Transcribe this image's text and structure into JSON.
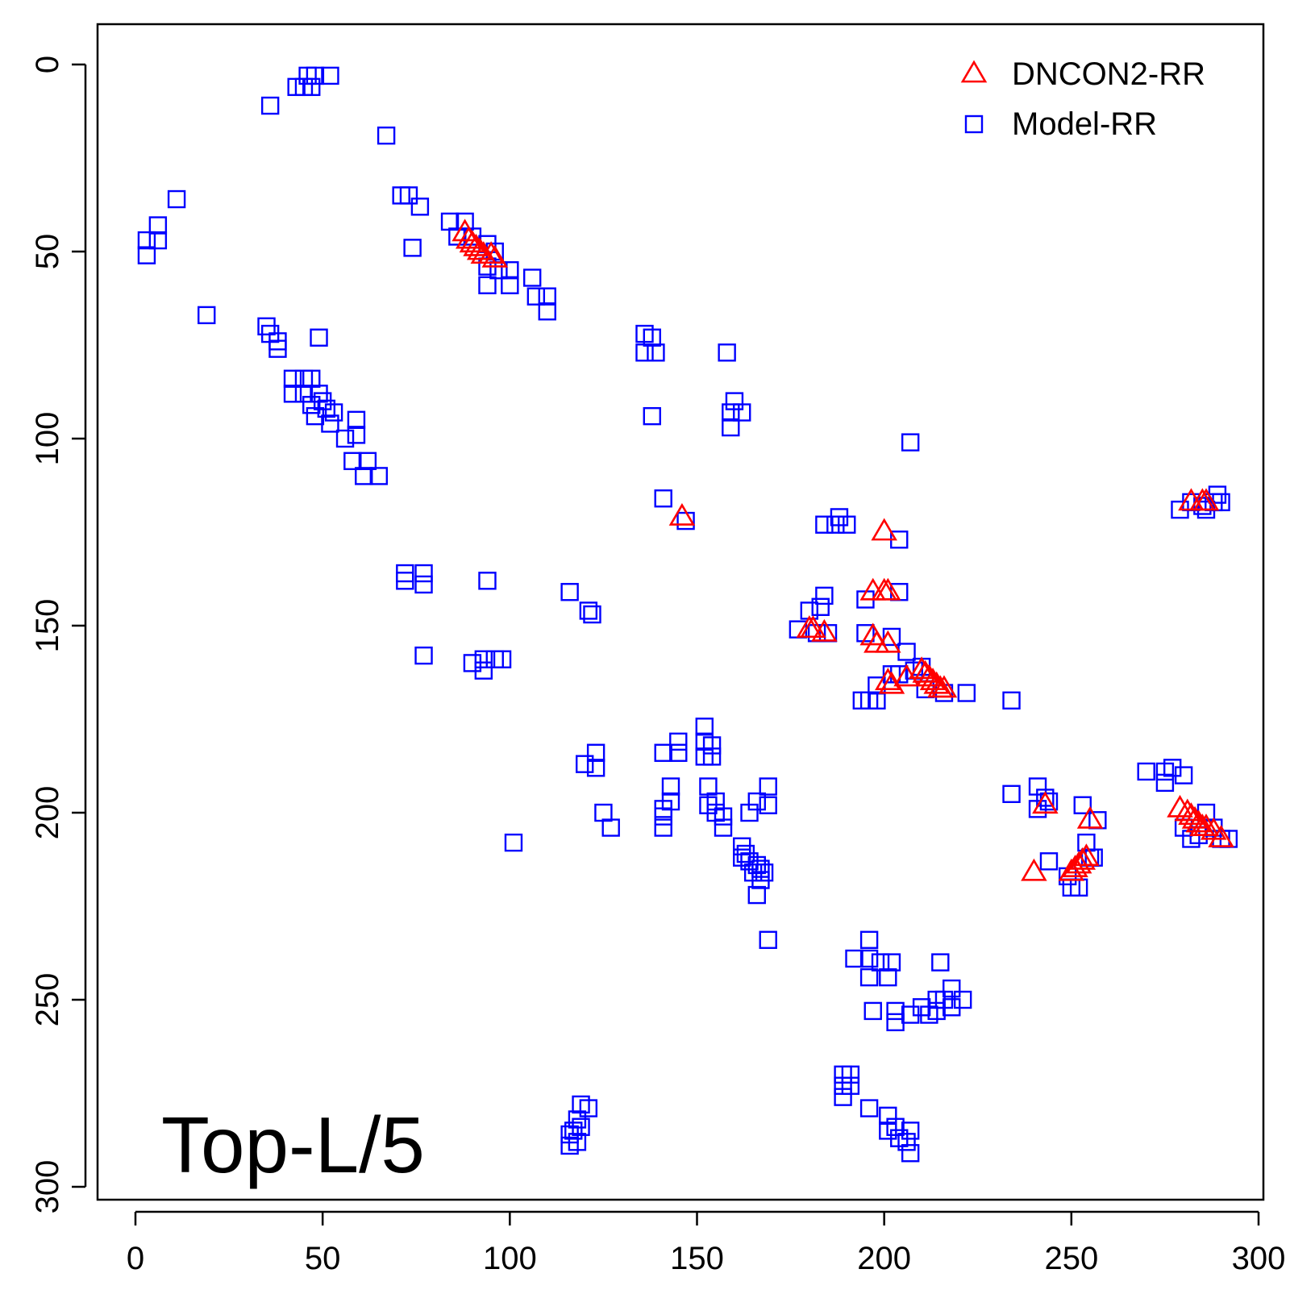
{
  "chart_data": {
    "type": "scatter",
    "title": "",
    "xlabel": "",
    "ylabel": "",
    "xlim": [
      -10,
      300
    ],
    "ylim": [
      300,
      -10
    ],
    "y_reversed": true,
    "x_ticks": [
      "0",
      "50",
      "100",
      "150",
      "200",
      "250",
      "300"
    ],
    "x_tick_values": [
      0,
      50,
      100,
      150,
      200,
      250,
      300
    ],
    "y_ticks": [
      "0",
      "50",
      "100",
      "150",
      "200",
      "250",
      "300"
    ],
    "y_tick_values": [
      0,
      50,
      100,
      150,
      200,
      250,
      300
    ],
    "grid": false,
    "legend_position": "top-right",
    "annotation": "Top-L/5",
    "series": [
      {
        "name": "DNCON2-RR",
        "marker": "triangle",
        "color": "#ff0000",
        "points": [
          [
            88,
            45
          ],
          [
            89,
            47
          ],
          [
            90,
            48
          ],
          [
            91,
            49
          ],
          [
            92,
            50
          ],
          [
            93,
            51
          ],
          [
            95,
            51
          ],
          [
            96,
            52
          ],
          [
            146,
            121
          ],
          [
            200,
            125
          ],
          [
            197,
            141
          ],
          [
            200,
            141
          ],
          [
            201,
            141
          ],
          [
            180,
            151
          ],
          [
            181,
            151
          ],
          [
            184,
            152
          ],
          [
            197,
            153
          ],
          [
            198,
            155
          ],
          [
            201,
            155
          ],
          [
            201,
            165
          ],
          [
            202,
            166
          ],
          [
            206,
            164
          ],
          [
            210,
            162
          ],
          [
            211,
            163
          ],
          [
            212,
            164
          ],
          [
            213,
            165
          ],
          [
            214,
            166
          ],
          [
            215,
            167
          ],
          [
            216,
            167
          ],
          [
            240,
            216
          ],
          [
            243,
            198
          ],
          [
            250,
            216
          ],
          [
            251,
            215
          ],
          [
            252,
            214
          ],
          [
            253,
            213
          ],
          [
            254,
            212
          ],
          [
            255,
            202
          ],
          [
            279,
            199
          ],
          [
            281,
            200
          ],
          [
            282,
            201
          ],
          [
            283,
            202
          ],
          [
            284,
            203
          ],
          [
            285,
            204
          ],
          [
            286,
            204
          ],
          [
            288,
            205
          ],
          [
            290,
            207
          ],
          [
            282,
            117
          ],
          [
            285,
            117
          ],
          [
            286,
            117
          ]
        ]
      },
      {
        "name": "Model-RR",
        "marker": "square",
        "color": "#0000ff",
        "points": [
          [
            46,
            3
          ],
          [
            48,
            3
          ],
          [
            52,
            3
          ],
          [
            43,
            6
          ],
          [
            45,
            6
          ],
          [
            47,
            6
          ],
          [
            36,
            11
          ],
          [
            67,
            19
          ],
          [
            71,
            35
          ],
          [
            73,
            35
          ],
          [
            76,
            38
          ],
          [
            74,
            49
          ],
          [
            11,
            36
          ],
          [
            6,
            43
          ],
          [
            6,
            47
          ],
          [
            3,
            47
          ],
          [
            3,
            51
          ],
          [
            19,
            67
          ],
          [
            35,
            70
          ],
          [
            36,
            72
          ],
          [
            38,
            74
          ],
          [
            38,
            76
          ],
          [
            49,
            73
          ],
          [
            42,
            84
          ],
          [
            45,
            84
          ],
          [
            47,
            84
          ],
          [
            42,
            88
          ],
          [
            45,
            88
          ],
          [
            49,
            88
          ],
          [
            47,
            91
          ],
          [
            50,
            90
          ],
          [
            48,
            94
          ],
          [
            51,
            92
          ],
          [
            53,
            93
          ],
          [
            52,
            96
          ],
          [
            56,
            100
          ],
          [
            59,
            95
          ],
          [
            59,
            99
          ],
          [
            58,
            106
          ],
          [
            62,
            106
          ],
          [
            61,
            110
          ],
          [
            65,
            110
          ],
          [
            84,
            42
          ],
          [
            88,
            42
          ],
          [
            86,
            46
          ],
          [
            90,
            46
          ],
          [
            94,
            48
          ],
          [
            96,
            50
          ],
          [
            94,
            54
          ],
          [
            97,
            55
          ],
          [
            100,
            55
          ],
          [
            94,
            59
          ],
          [
            100,
            59
          ],
          [
            106,
            57
          ],
          [
            107,
            62
          ],
          [
            110,
            62
          ],
          [
            110,
            66
          ],
          [
            136,
            72
          ],
          [
            138,
            73
          ],
          [
            136,
            77
          ],
          [
            139,
            77
          ],
          [
            138,
            94
          ],
          [
            158,
            77
          ],
          [
            160,
            90
          ],
          [
            159,
            93
          ],
          [
            162,
            93
          ],
          [
            159,
            97
          ],
          [
            141,
            116
          ],
          [
            147,
            122
          ],
          [
            207,
            101
          ],
          [
            72,
            136
          ],
          [
            77,
            136
          ],
          [
            72,
            138
          ],
          [
            77,
            139
          ],
          [
            94,
            138
          ],
          [
            116,
            141
          ],
          [
            121,
            146
          ],
          [
            122,
            147
          ],
          [
            77,
            158
          ],
          [
            90,
            160
          ],
          [
            93,
            159
          ],
          [
            93,
            162
          ],
          [
            96,
            159
          ],
          [
            98,
            159
          ],
          [
            184,
            123
          ],
          [
            188,
            121
          ],
          [
            187,
            123
          ],
          [
            190,
            123
          ],
          [
            204,
            127
          ],
          [
            184,
            142
          ],
          [
            183,
            145
          ],
          [
            180,
            146
          ],
          [
            177,
            151
          ],
          [
            182,
            152
          ],
          [
            185,
            152
          ],
          [
            195,
            143
          ],
          [
            204,
            141
          ],
          [
            195,
            152
          ],
          [
            202,
            153
          ],
          [
            206,
            157
          ],
          [
            198,
            166
          ],
          [
            202,
            163
          ],
          [
            204,
            163
          ],
          [
            208,
            162
          ],
          [
            210,
            161
          ],
          [
            196,
            170
          ],
          [
            194,
            170
          ],
          [
            198,
            170
          ],
          [
            211,
            167
          ],
          [
            216,
            168
          ],
          [
            222,
            168
          ],
          [
            234,
            170
          ],
          [
            123,
            184
          ],
          [
            123,
            188
          ],
          [
            120,
            187
          ],
          [
            127,
            204
          ],
          [
            125,
            200
          ],
          [
            101,
            208
          ],
          [
            145,
            181
          ],
          [
            145,
            184
          ],
          [
            141,
            184
          ],
          [
            152,
            177
          ],
          [
            152,
            181
          ],
          [
            152,
            185
          ],
          [
            154,
            182
          ],
          [
            154,
            185
          ],
          [
            143,
            193
          ],
          [
            143,
            197
          ],
          [
            141,
            199
          ],
          [
            141,
            201
          ],
          [
            141,
            204
          ],
          [
            153,
            193
          ],
          [
            153,
            198
          ],
          [
            155,
            197
          ],
          [
            155,
            200
          ],
          [
            157,
            201
          ],
          [
            157,
            204
          ],
          [
            162,
            209
          ],
          [
            162,
            212
          ],
          [
            163,
            211
          ],
          [
            164,
            213
          ],
          [
            165,
            216
          ],
          [
            166,
            214
          ],
          [
            167,
            215
          ],
          [
            168,
            216
          ],
          [
            167,
            218
          ],
          [
            164,
            200
          ],
          [
            166,
            197
          ],
          [
            169,
            193
          ],
          [
            169,
            198
          ],
          [
            166,
            222
          ],
          [
            169,
            234
          ],
          [
            234,
            195
          ],
          [
            241,
            193
          ],
          [
            241,
            199
          ],
          [
            244,
            197
          ],
          [
            244,
            213
          ],
          [
            243,
            196
          ],
          [
            249,
            217
          ],
          [
            250,
            220
          ],
          [
            252,
            220
          ],
          [
            253,
            198
          ],
          [
            254,
            208
          ],
          [
            255,
            212
          ],
          [
            256,
            212
          ],
          [
            257,
            202
          ],
          [
            270,
            189
          ],
          [
            275,
            189
          ],
          [
            277,
            188
          ],
          [
            275,
            192
          ],
          [
            280,
            190
          ],
          [
            280,
            204
          ],
          [
            282,
            207
          ],
          [
            284,
            206
          ],
          [
            286,
            200
          ],
          [
            288,
            204
          ],
          [
            290,
            207
          ],
          [
            292,
            207
          ],
          [
            279,
            119
          ],
          [
            282,
            117
          ],
          [
            285,
            118
          ],
          [
            286,
            119
          ],
          [
            289,
            115
          ],
          [
            290,
            117
          ],
          [
            288,
            117
          ],
          [
            196,
            234
          ],
          [
            196,
            239
          ],
          [
            196,
            244
          ],
          [
            199,
            240
          ],
          [
            202,
            240
          ],
          [
            201,
            244
          ],
          [
            192,
            239
          ],
          [
            215,
            240
          ],
          [
            197,
            253
          ],
          [
            203,
            253
          ],
          [
            203,
            256
          ],
          [
            207,
            254
          ],
          [
            210,
            252
          ],
          [
            212,
            254
          ],
          [
            214,
            250
          ],
          [
            214,
            253
          ],
          [
            216,
            250
          ],
          [
            218,
            247
          ],
          [
            218,
            252
          ],
          [
            221,
            250
          ],
          [
            189,
            270
          ],
          [
            191,
            270
          ],
          [
            189,
            273
          ],
          [
            191,
            273
          ],
          [
            189,
            276
          ],
          [
            196,
            279
          ],
          [
            201,
            281
          ],
          [
            201,
            285
          ],
          [
            203,
            284
          ],
          [
            204,
            287
          ],
          [
            206,
            288
          ],
          [
            207,
            285
          ],
          [
            207,
            291
          ],
          [
            119,
            278
          ],
          [
            118,
            282
          ],
          [
            117,
            285
          ],
          [
            116,
            286
          ],
          [
            116,
            289
          ],
          [
            119,
            284
          ],
          [
            118,
            288
          ],
          [
            121,
            279
          ]
        ]
      }
    ]
  }
}
